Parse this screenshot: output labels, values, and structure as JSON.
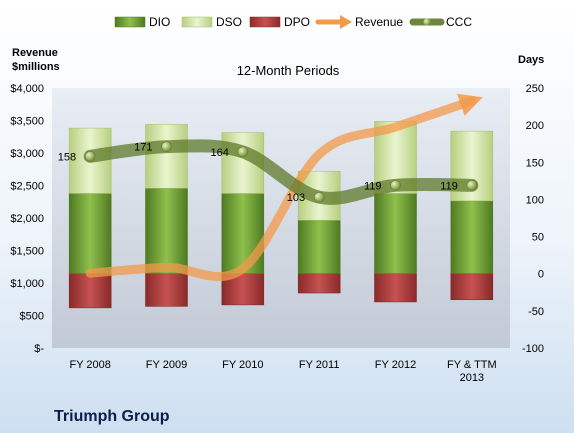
{
  "chart_data": {
    "type": "bar",
    "title": "12-Month Periods",
    "company": "Triumph Group",
    "y_left_label": "Revenue\n$millions",
    "y_right_label": "Days",
    "categories": [
      "FY 2008",
      "FY 2009",
      "FY 2010",
      "FY 2011",
      "FY 2012",
      "FY & TTM\n2013"
    ],
    "ylim_left": [
      0,
      4000
    ],
    "ylim_right": [
      -100,
      250
    ],
    "y_left_ticks": [
      {
        "value": 0,
        "label": "$-"
      },
      {
        "value": 500,
        "label": "$500"
      },
      {
        "value": 1000,
        "label": "$1,000"
      },
      {
        "value": 1500,
        "label": "$1,500"
      },
      {
        "value": 2000,
        "label": "$2,000"
      },
      {
        "value": 2500,
        "label": "$2,500"
      },
      {
        "value": 3000,
        "label": "$3,000"
      },
      {
        "value": 3500,
        "label": "$3,500"
      },
      {
        "value": 4000,
        "label": "$4,000"
      }
    ],
    "y_right_ticks": [
      -100,
      -50,
      0,
      50,
      100,
      150,
      200,
      250
    ],
    "grid": false,
    "legend_position": "top",
    "series": [
      {
        "name": "DIO",
        "type": "stacked-bar",
        "axis": "right",
        "color": "#6f9a35",
        "values": [
          108,
          115,
          108,
          72,
          108,
          98
        ]
      },
      {
        "name": "DSO",
        "type": "stacked-bar",
        "axis": "right",
        "color": "#d4e6a6",
        "values": [
          88,
          86,
          82,
          66,
          97,
          94
        ]
      },
      {
        "name": "DPO",
        "type": "stacked-bar",
        "axis": "right",
        "color": "#a93b3b",
        "values": [
          -46,
          -44,
          -42,
          -26,
          -38,
          -35
        ]
      },
      {
        "name": "Revenue",
        "type": "line",
        "axis": "left",
        "color": "#f39a4a",
        "values": [
          1150,
          1240,
          1220,
          2980,
          3400,
          3800
        ]
      },
      {
        "name": "CCC",
        "type": "line",
        "axis": "right",
        "color": "#5e7a2a",
        "values": [
          158,
          171,
          164,
          103,
          119,
          119
        ],
        "labels": [
          "158",
          "171",
          "164",
          "103",
          "119",
          "119"
        ]
      }
    ]
  }
}
